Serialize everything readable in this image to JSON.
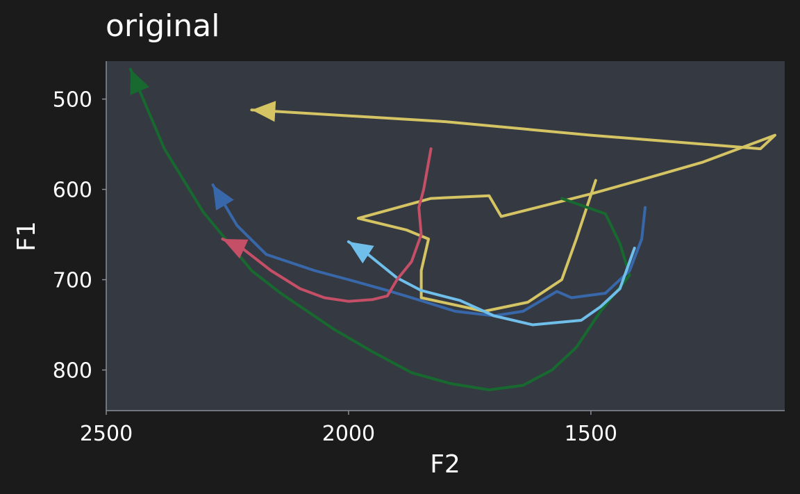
{
  "chart_data": {
    "type": "line",
    "title": "original",
    "xlabel": "F2",
    "ylabel": "F1",
    "xlim": [
      2500,
      1100
    ],
    "ylim": [
      845,
      458
    ],
    "x_reversed": true,
    "y_reversed": true,
    "x_ticks": [
      2500,
      2000,
      1500
    ],
    "y_ticks": [
      500,
      600,
      700,
      800
    ],
    "grid": false,
    "colors": {
      "page_background": "#1b1b1b",
      "panel_background": "#353942",
      "text": "#ffffff"
    },
    "series": [
      {
        "color": "#d5c463",
        "arrow": true,
        "points": [
          [
            1490,
            590
          ],
          [
            1530,
            655
          ],
          [
            1560,
            700
          ],
          [
            1630,
            725
          ],
          [
            1720,
            735
          ],
          [
            1850,
            720
          ],
          [
            1850,
            690
          ],
          [
            1835,
            655
          ],
          [
            1880,
            645
          ],
          [
            1980,
            632
          ],
          [
            1830,
            610
          ],
          [
            1710,
            607
          ],
          [
            1685,
            630
          ],
          [
            1500,
            605
          ],
          [
            1400,
            590
          ],
          [
            1270,
            570
          ],
          [
            1120,
            540
          ],
          [
            1150,
            555
          ],
          [
            1500,
            540
          ],
          [
            1800,
            525
          ],
          [
            2200,
            512
          ]
        ]
      },
      {
        "color": "#18692f",
        "arrow": true,
        "points": [
          [
            1560,
            610
          ],
          [
            1470,
            627
          ],
          [
            1440,
            660
          ],
          [
            1420,
            695
          ],
          [
            1480,
            735
          ],
          [
            1530,
            775
          ],
          [
            1580,
            800
          ],
          [
            1640,
            817
          ],
          [
            1710,
            822
          ],
          [
            1790,
            815
          ],
          [
            1870,
            803
          ],
          [
            1950,
            780
          ],
          [
            2030,
            755
          ],
          [
            2140,
            715
          ],
          [
            2200,
            690
          ],
          [
            2300,
            625
          ],
          [
            2380,
            555
          ],
          [
            2450,
            467
          ]
        ]
      },
      {
        "color": "#3868aa",
        "arrow": true,
        "points": [
          [
            1388,
            620
          ],
          [
            1395,
            655
          ],
          [
            1420,
            690
          ],
          [
            1470,
            715
          ],
          [
            1540,
            720
          ],
          [
            1570,
            713
          ],
          [
            1640,
            735
          ],
          [
            1700,
            740
          ],
          [
            1780,
            735
          ],
          [
            1870,
            720
          ],
          [
            1920,
            712
          ],
          [
            2000,
            700
          ],
          [
            2070,
            690
          ],
          [
            2170,
            672
          ],
          [
            2230,
            640
          ],
          [
            2280,
            595
          ]
        ]
      },
      {
        "color": "#6fbfea",
        "arrow": true,
        "points": [
          [
            1410,
            665
          ],
          [
            1440,
            710
          ],
          [
            1480,
            730
          ],
          [
            1520,
            745
          ],
          [
            1580,
            748
          ],
          [
            1620,
            750
          ],
          [
            1700,
            740
          ],
          [
            1770,
            723
          ],
          [
            1850,
            712
          ],
          [
            1900,
            698
          ],
          [
            1960,
            672
          ],
          [
            2000,
            658
          ]
        ]
      },
      {
        "color": "#c44f66",
        "arrow": true,
        "points": [
          [
            1830,
            555
          ],
          [
            1845,
            600
          ],
          [
            1855,
            620
          ],
          [
            1850,
            650
          ],
          [
            1870,
            680
          ],
          [
            1900,
            700
          ],
          [
            1920,
            718
          ],
          [
            1950,
            722
          ],
          [
            2000,
            724
          ],
          [
            2050,
            720
          ],
          [
            2100,
            710
          ],
          [
            2160,
            690
          ],
          [
            2220,
            665
          ],
          [
            2260,
            655
          ]
        ]
      }
    ]
  }
}
